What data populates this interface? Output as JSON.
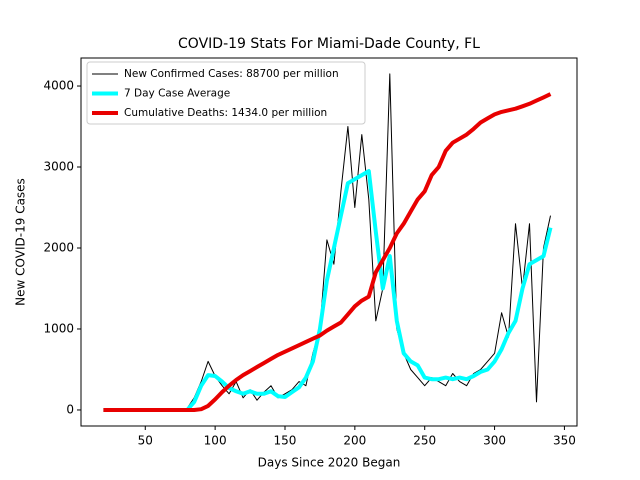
{
  "chart_data": {
    "type": "line",
    "title": "COVID-19 Stats For Miami-Dade County, FL",
    "xlabel": "Days Since 2020 Began",
    "ylabel": "New COVID-19 Cases",
    "x": [
      20,
      25,
      30,
      35,
      40,
      45,
      50,
      55,
      60,
      65,
      70,
      75,
      80,
      85,
      90,
      95,
      100,
      105,
      110,
      115,
      120,
      125,
      130,
      135,
      140,
      145,
      150,
      155,
      160,
      165,
      170,
      175,
      180,
      185,
      190,
      195,
      200,
      205,
      210,
      215,
      220,
      225,
      230,
      235,
      240,
      245,
      250,
      255,
      260,
      265,
      270,
      275,
      280,
      285,
      290,
      295,
      300,
      305,
      310,
      315,
      320,
      325,
      330,
      335,
      340
    ],
    "series": [
      {
        "name": "New Confirmed Cases: 88700 per million",
        "color": "#000000",
        "linewidth": 1,
        "values": [
          null,
          null,
          null,
          null,
          null,
          null,
          null,
          null,
          null,
          null,
          null,
          null,
          20,
          150,
          350,
          600,
          420,
          300,
          200,
          350,
          150,
          250,
          120,
          220,
          300,
          150,
          200,
          250,
          350,
          300,
          700,
          1000,
          2100,
          1800,
          2700,
          3500,
          2500,
          3400,
          2600,
          1100,
          1500,
          4150,
          1000,
          700,
          500,
          400,
          300,
          400,
          350,
          300,
          450,
          350,
          300,
          450,
          500,
          600,
          700,
          1200,
          900,
          2300,
          1500,
          2300,
          100,
          2000,
          2400
        ]
      },
      {
        "name": "7 Day Case Average",
        "color": "#00ffff",
        "linewidth": 4,
        "values": [
          0,
          0,
          0,
          0,
          0,
          0,
          0,
          0,
          0,
          0,
          0,
          0,
          0,
          100,
          300,
          430,
          420,
          350,
          270,
          230,
          200,
          230,
          200,
          200,
          230,
          170,
          160,
          220,
          280,
          400,
          600,
          1000,
          1600,
          2000,
          2400,
          2800,
          2850,
          2900,
          2950,
          2200,
          1500,
          1900,
          1100,
          700,
          600,
          550,
          400,
          380,
          380,
          400,
          380,
          400,
          380,
          420,
          470,
          500,
          600,
          750,
          950,
          1100,
          1500,
          1800,
          1850,
          1900,
          2250
        ]
      },
      {
        "name": "Cumulative Deaths: 1434.0 per million",
        "color": "#e80000",
        "linewidth": 4,
        "values": [
          0,
          0,
          0,
          0,
          0,
          0,
          0,
          0,
          0,
          0,
          0,
          0,
          0,
          0,
          10,
          50,
          130,
          220,
          300,
          370,
          430,
          480,
          530,
          580,
          630,
          680,
          720,
          760,
          800,
          840,
          880,
          920,
          980,
          1030,
          1080,
          1180,
          1280,
          1350,
          1400,
          1700,
          1850,
          2000,
          2180,
          2300,
          2450,
          2600,
          2700,
          2900,
          3000,
          3200,
          3300,
          3350,
          3400,
          3470,
          3550,
          3600,
          3650,
          3680,
          3700,
          3720,
          3750,
          3780,
          3820,
          3860,
          3900
        ]
      }
    ],
    "xlim": [
      4,
      359
    ],
    "xticks": [
      50,
      100,
      150,
      200,
      250,
      300,
      350
    ],
    "ylim": [
      -198,
      4346
    ],
    "yticks": [
      0,
      1000,
      2000,
      3000,
      4000
    ],
    "legend": "upper left"
  }
}
